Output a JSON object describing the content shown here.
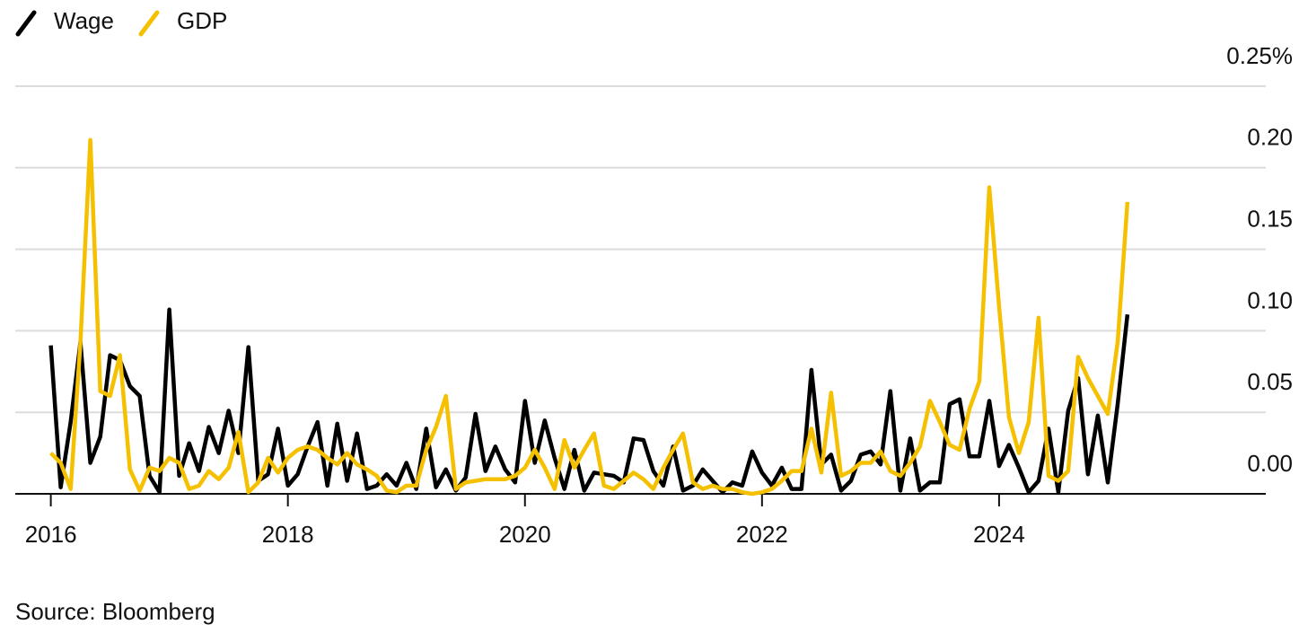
{
  "chart_data": {
    "type": "line",
    "legend_position": "top-left",
    "grid": true,
    "source": "Source: Bloomberg",
    "x": [
      2016,
      2016.083,
      2016.167,
      2016.25,
      2016.333,
      2016.417,
      2016.5,
      2016.583,
      2016.667,
      2016.75,
      2016.833,
      2016.917,
      2017,
      2017.083,
      2017.167,
      2017.25,
      2017.333,
      2017.417,
      2017.5,
      2017.583,
      2017.667,
      2017.75,
      2017.833,
      2017.917,
      2018,
      2018.083,
      2018.167,
      2018.25,
      2018.333,
      2018.417,
      2018.5,
      2018.583,
      2018.667,
      2018.75,
      2018.833,
      2018.917,
      2019,
      2019.083,
      2019.167,
      2019.25,
      2019.333,
      2019.417,
      2019.5,
      2019.583,
      2019.667,
      2019.75,
      2019.833,
      2019.917,
      2020,
      2020.083,
      2020.167,
      2020.25,
      2020.333,
      2020.417,
      2020.5,
      2020.583,
      2020.667,
      2020.75,
      2020.833,
      2020.917,
      2021,
      2021.083,
      2021.167,
      2021.25,
      2021.333,
      2021.417,
      2021.5,
      2021.583,
      2021.667,
      2021.75,
      2021.833,
      2021.917,
      2022,
      2022.083,
      2022.167,
      2022.25,
      2022.333,
      2022.417,
      2022.5,
      2022.583,
      2022.667,
      2022.75,
      2022.833,
      2022.917,
      2023,
      2023.083,
      2023.167,
      2023.25,
      2023.333,
      2023.417,
      2023.5,
      2023.583,
      2023.667,
      2023.75,
      2023.833,
      2023.917,
      2024,
      2024.083,
      2024.167,
      2024.25,
      2024.333,
      2024.417,
      2024.5,
      2024.583,
      2024.667,
      2024.75,
      2024.833,
      2024.917,
      2025,
      2025.083
    ],
    "series": [
      {
        "name": "Wage",
        "color": "#000000",
        "values": [
          0.091,
          0.004,
          0.044,
          0.093,
          0.019,
          0.035,
          0.085,
          0.082,
          0.066,
          0.06,
          0.011,
          0.001,
          0.113,
          0.011,
          0.031,
          0.014,
          0.041,
          0.025,
          0.051,
          0.025,
          0.09,
          0.008,
          0.012,
          0.04,
          0.005,
          0.012,
          0.029,
          0.044,
          0.005,
          0.043,
          0.008,
          0.037,
          0.003,
          0.005,
          0.012,
          0.005,
          0.019,
          0.003,
          0.04,
          0.004,
          0.015,
          0.002,
          0.01,
          0.049,
          0.014,
          0.029,
          0.015,
          0.007,
          0.057,
          0.019,
          0.045,
          0.022,
          0.003,
          0.027,
          0.002,
          0.013,
          0.012,
          0.011,
          0.007,
          0.034,
          0.033,
          0.014,
          0.005,
          0.029,
          0.002,
          0.005,
          0.015,
          0.008,
          0.001,
          0.007,
          0.005,
          0.026,
          0.013,
          0.005,
          0.016,
          0.003,
          0.003,
          0.076,
          0.018,
          0.024,
          0.002,
          0.008,
          0.024,
          0.026,
          0.018,
          0.063,
          0.002,
          0.034,
          0.002,
          0.007,
          0.007,
          0.055,
          0.058,
          0.023,
          0.023,
          0.057,
          0.017,
          0.03,
          0.016,
          0.001,
          0.008,
          0.04,
          0.001,
          0.051,
          0.071,
          0.012,
          0.048,
          0.007,
          0.055,
          0.11
        ]
      },
      {
        "name": "GDP",
        "color": "#f5c000",
        "values": [
          0.025,
          0.019,
          0.003,
          0.093,
          0.217,
          0.063,
          0.06,
          0.085,
          0.015,
          0.002,
          0.016,
          0.014,
          0.022,
          0.019,
          0.003,
          0.005,
          0.014,
          0.009,
          0.016,
          0.038,
          0.001,
          0.007,
          0.022,
          0.013,
          0.022,
          0.027,
          0.029,
          0.027,
          0.022,
          0.018,
          0.025,
          0.018,
          0.015,
          0.011,
          0.002,
          0.001,
          0.005,
          0.005,
          0.027,
          0.041,
          0.06,
          0.003,
          0.007,
          0.008,
          0.009,
          0.009,
          0.009,
          0.011,
          0.016,
          0.027,
          0.016,
          0.003,
          0.033,
          0.016,
          0.027,
          0.037,
          0.005,
          0.003,
          0.008,
          0.013,
          0.009,
          0.003,
          0.016,
          0.027,
          0.037,
          0.007,
          0.003,
          0.005,
          0.003,
          0.003,
          0.001,
          0,
          0.001,
          0.003,
          0.008,
          0.014,
          0.014,
          0.04,
          0.013,
          0.062,
          0.011,
          0.014,
          0.019,
          0.019,
          0.026,
          0.014,
          0.011,
          0.019,
          0.029,
          0.057,
          0.044,
          0.03,
          0.027,
          0.052,
          0.069,
          0.188,
          0.115,
          0.047,
          0.025,
          0.044,
          0.108,
          0.011,
          0.008,
          0.014,
          0.084,
          0.071,
          0.06,
          0.049,
          0.093,
          0.179
        ]
      }
    ],
    "xlim": [
      2015.7,
      2026.25
    ],
    "xticks": [
      2016,
      2018,
      2020,
      2022,
      2024
    ],
    "ylim": [
      0,
      0.25
    ],
    "yticks": [
      {
        "value": 0,
        "label": "0.00"
      },
      0.05,
      {
        "value": 0.1,
        "label": "0.10"
      },
      0.15,
      {
        "value": 0.2,
        "label": "0.20"
      },
      {
        "value": 0.25,
        "label": "0.25%"
      }
    ]
  }
}
